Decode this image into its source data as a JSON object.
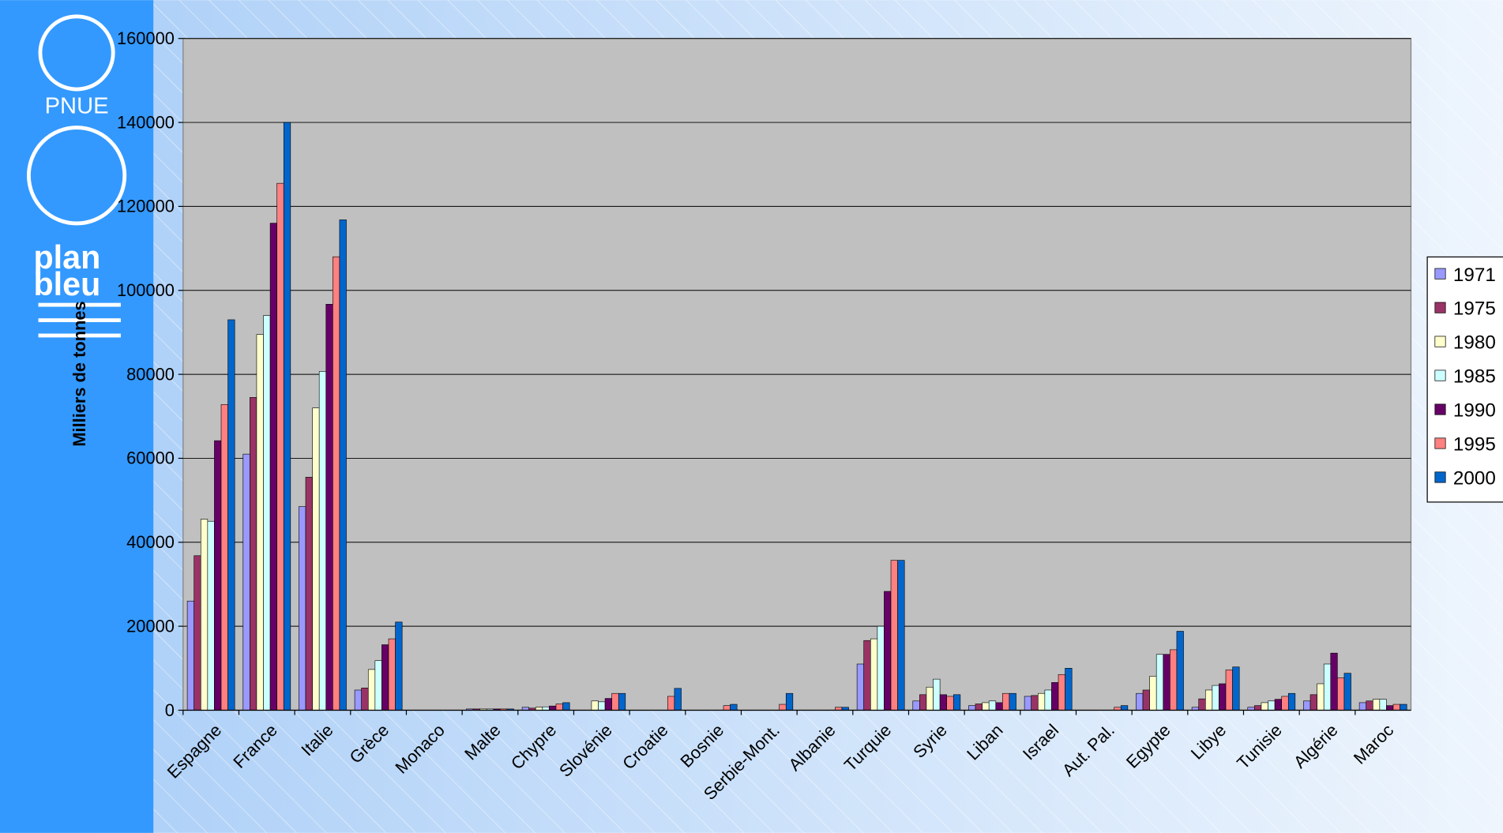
{
  "logos": {
    "pnue": "PNUE",
    "plan": "plan",
    "bleu": "bleu"
  },
  "chart_data": {
    "type": "bar",
    "ylabel": "Milliers de tonnes",
    "categories": [
      "Espagne",
      "France",
      "Italie",
      "Grèce",
      "Monaco",
      "Malte",
      "Chypre",
      "Slovénie",
      "Croatie",
      "Bosnie",
      "Serbie-Mont.",
      "Albanie",
      "Turquie",
      "Syrie",
      "Liban",
      "Israel",
      "Aut. Pal.",
      "Egypte",
      "Libye",
      "Tunisie",
      "Algérie",
      "Maroc"
    ],
    "series": [
      {
        "name": "1971",
        "color": "#9999ff",
        "values": [
          26000,
          61000,
          48500,
          4800,
          0,
          300,
          700,
          null,
          null,
          null,
          null,
          null,
          11000,
          2200,
          1100,
          3300,
          null,
          4000,
          700,
          700,
          2200,
          1800
        ]
      },
      {
        "name": "1975",
        "color": "#993366",
        "values": [
          36800,
          74500,
          55500,
          5300,
          0,
          300,
          500,
          null,
          null,
          null,
          null,
          null,
          16600,
          3700,
          1500,
          3500,
          null,
          4800,
          2700,
          1100,
          3700,
          2200
        ]
      },
      {
        "name": "1980",
        "color": "#ffffcc",
        "values": [
          45500,
          89500,
          72000,
          9700,
          0,
          300,
          700,
          2200,
          null,
          null,
          null,
          null,
          17000,
          5500,
          1800,
          4000,
          null,
          8100,
          4800,
          1800,
          6300,
          2600
        ]
      },
      {
        "name": "1985",
        "color": "#ccffff",
        "values": [
          45000,
          94000,
          80700,
          11800,
          0,
          300,
          800,
          2000,
          null,
          null,
          null,
          null,
          20000,
          7400,
          2200,
          4800,
          null,
          13300,
          5900,
          2200,
          11000,
          2600
        ]
      },
      {
        "name": "1990",
        "color": "#660066",
        "values": [
          64200,
          116000,
          96700,
          15600,
          0,
          300,
          1000,
          2800,
          null,
          null,
          null,
          null,
          28300,
          3700,
          1800,
          6600,
          null,
          13300,
          6300,
          2600,
          13600,
          1100
        ]
      },
      {
        "name": "1995",
        "color": "#ff8080",
        "values": [
          72800,
          125500,
          108000,
          17000,
          0,
          300,
          1500,
          4000,
          3300,
          1100,
          1400,
          700,
          35700,
          3300,
          4000,
          8500,
          700,
          14400,
          9600,
          3300,
          7700,
          1400
        ]
      },
      {
        "name": "2000",
        "color": "#0066cc",
        "values": [
          93000,
          140000,
          116800,
          21000,
          0,
          300,
          1800,
          4000,
          5200,
          1400,
          4000,
          700,
          35700,
          3700,
          4000,
          10000,
          1100,
          18800,
          10300,
          4000,
          8800,
          1400
        ]
      }
    ],
    "ylim": [
      0,
      160000
    ],
    "yticks": [
      0,
      20000,
      40000,
      60000,
      80000,
      100000,
      120000,
      140000,
      160000
    ],
    "grid": true,
    "plot_background": "#c0c0c0",
    "legend": "right"
  }
}
